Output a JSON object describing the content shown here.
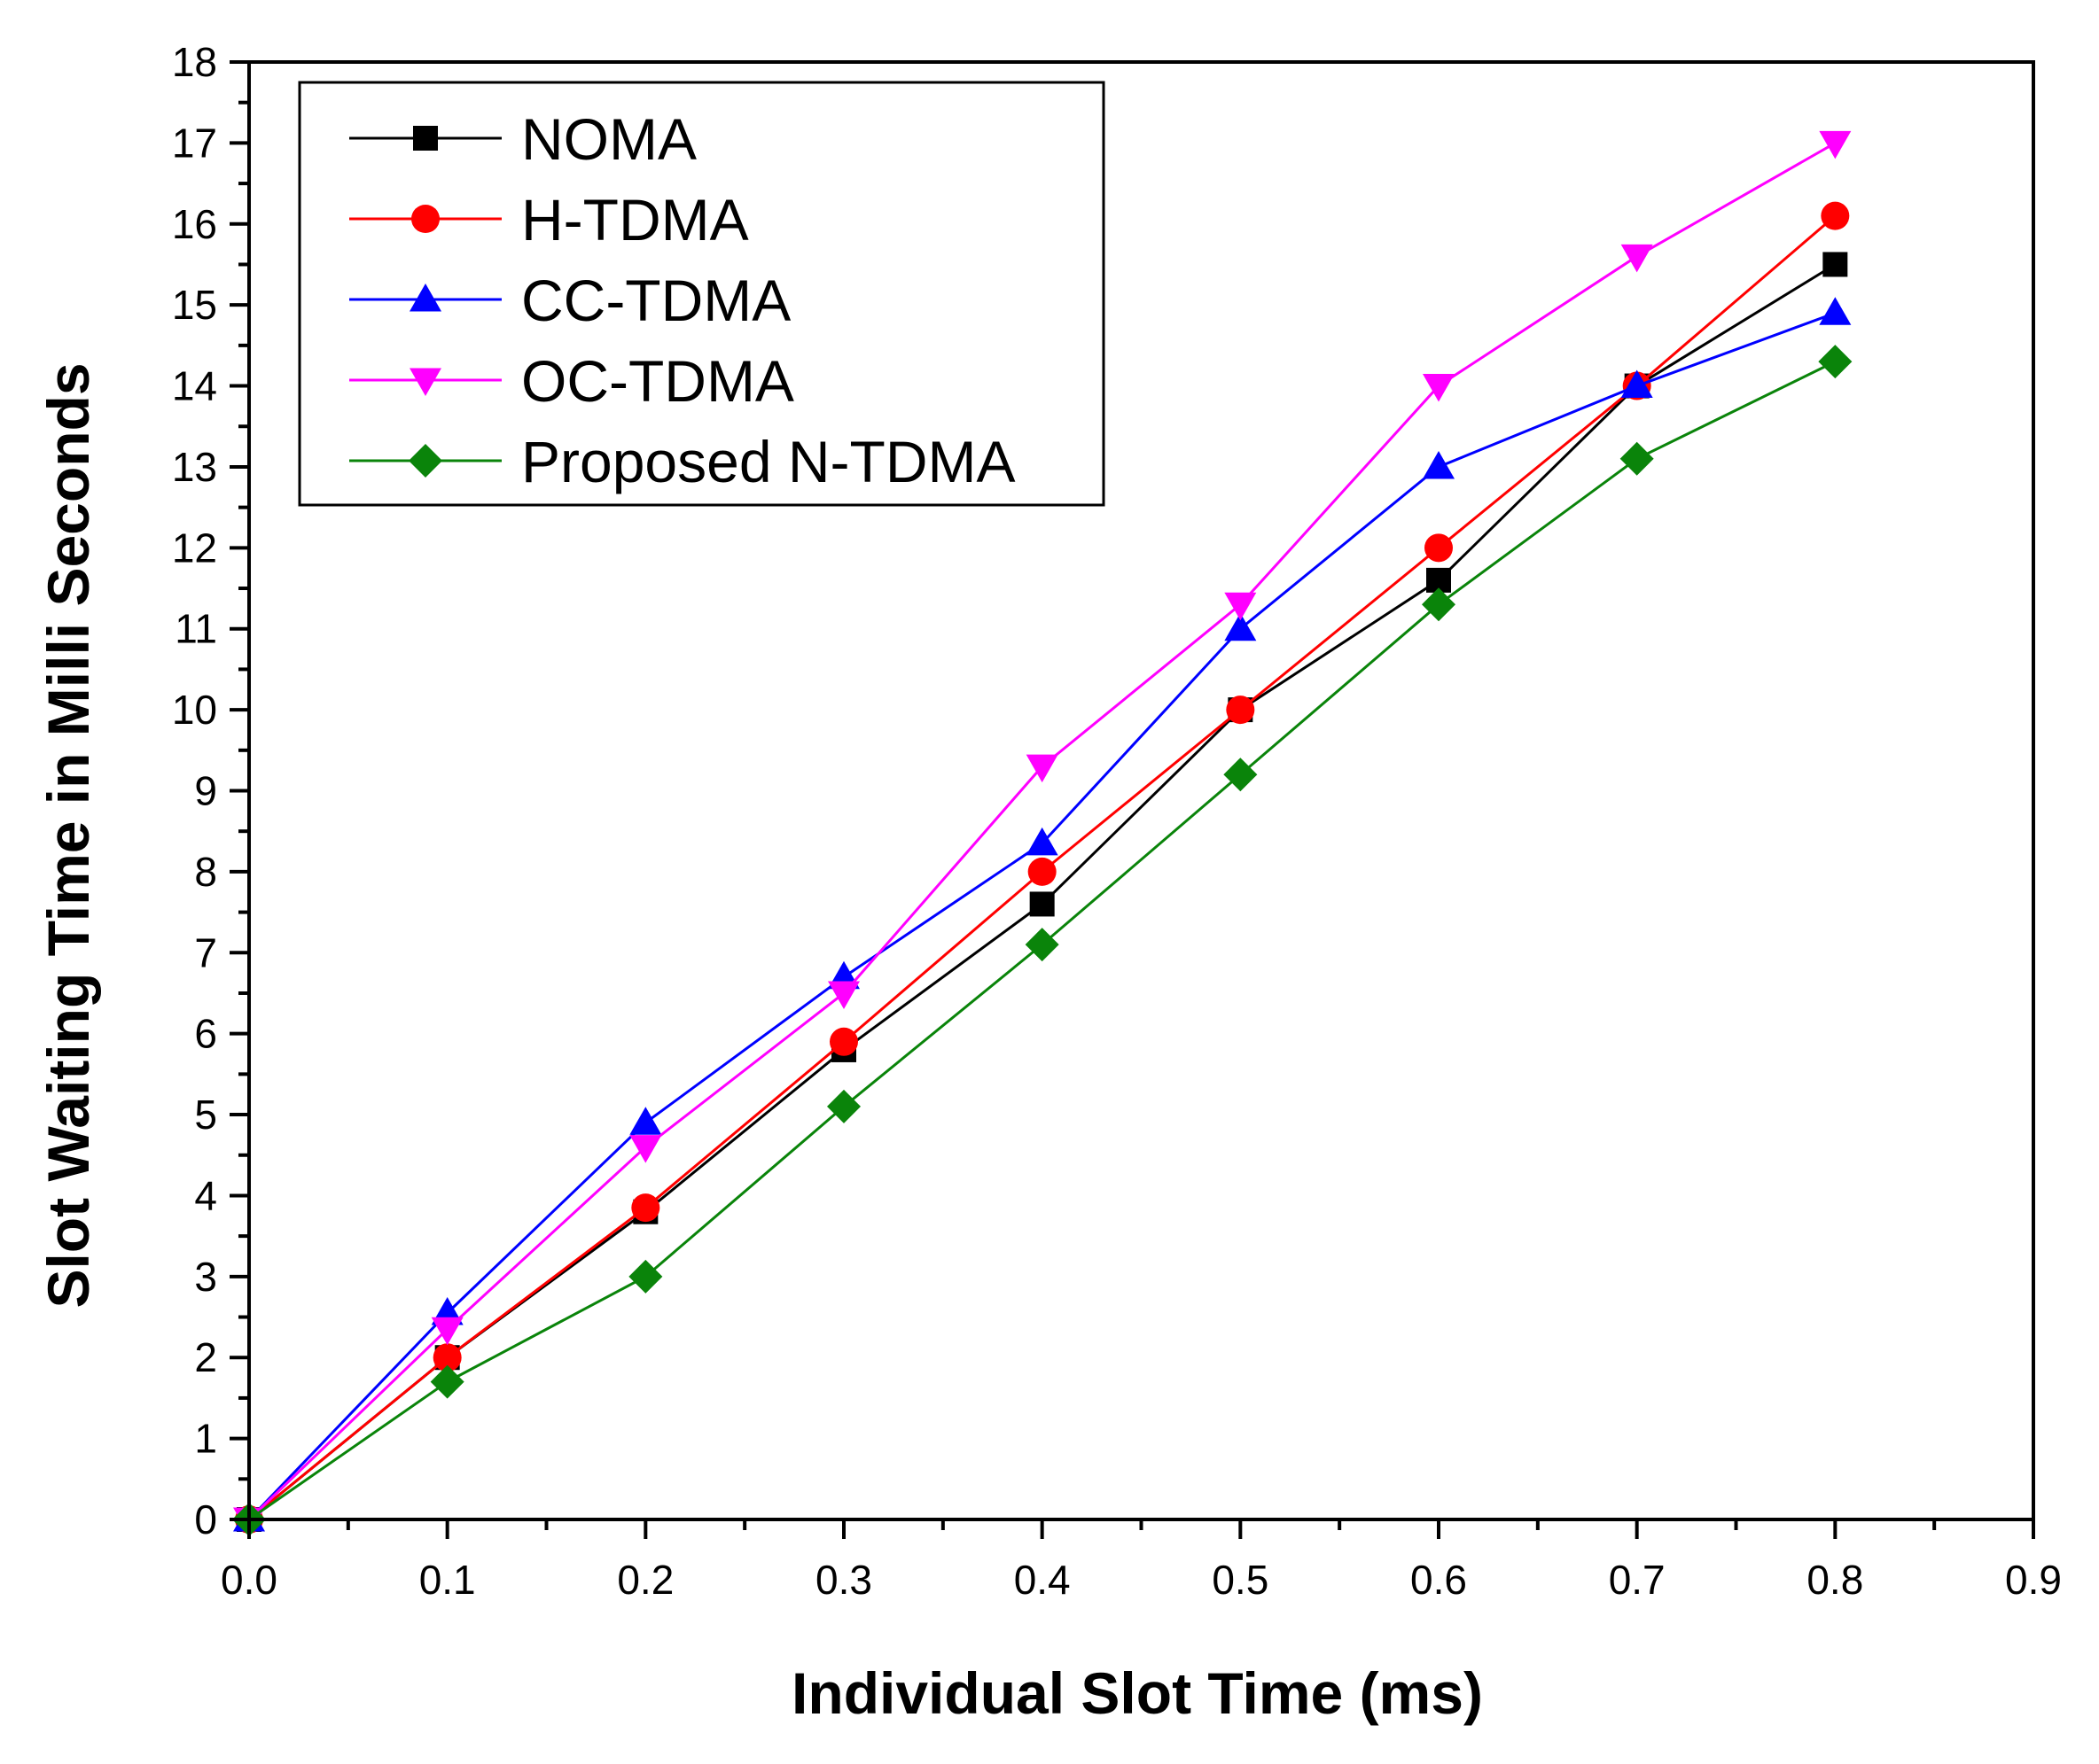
{
  "chart_data": {
    "type": "line",
    "title": "",
    "xlabel": "Individual Slot Time (ms)",
    "ylabel": "Slot Waiting Time in Milli Seconds",
    "xlim": [
      0.0,
      0.9
    ],
    "ylim": [
      0,
      18
    ],
    "x_ticks": [
      "0.0",
      "0.1",
      "0.2",
      "0.3",
      "0.4",
      "0.5",
      "0.6",
      "0.7",
      "0.8",
      "0.9"
    ],
    "y_ticks": [
      "0",
      "1",
      "2",
      "3",
      "4",
      "5",
      "6",
      "7",
      "8",
      "9",
      "10",
      "11",
      "12",
      "13",
      "14",
      "15",
      "16",
      "17",
      "18"
    ],
    "grid": false,
    "legend_position": "top-left",
    "x": [
      0.0,
      0.1,
      0.2,
      0.3,
      0.4,
      0.5,
      0.6,
      0.7,
      0.8
    ],
    "series": [
      {
        "name": "NOMA",
        "color": "#000000",
        "marker": "square",
        "values": [
          0.0,
          2.0,
          3.8,
          5.8,
          7.6,
          10.0,
          11.6,
          14.0,
          15.5
        ]
      },
      {
        "name": "H-TDMA",
        "color": "#ff0000",
        "marker": "circle",
        "values": [
          0.0,
          2.0,
          3.85,
          5.9,
          8.0,
          10.0,
          12.0,
          14.0,
          16.1
        ]
      },
      {
        "name": "CC-TDMA",
        "color": "#0000ff",
        "marker": "triangle-up",
        "values": [
          0.0,
          2.55,
          4.9,
          6.7,
          8.35,
          11.0,
          13.0,
          14.0,
          14.9
        ]
      },
      {
        "name": "OC-TDMA",
        "color": "#ff00ff",
        "marker": "triangle-down",
        "values": [
          0.0,
          2.35,
          4.6,
          6.5,
          9.3,
          11.3,
          14.0,
          15.6,
          17.0
        ]
      },
      {
        "name": "Proposed N-TDMA",
        "color": "#0a840a",
        "marker": "diamond",
        "values": [
          0.0,
          1.7,
          3.0,
          5.1,
          7.1,
          9.2,
          11.3,
          13.1,
          14.3
        ]
      }
    ]
  }
}
